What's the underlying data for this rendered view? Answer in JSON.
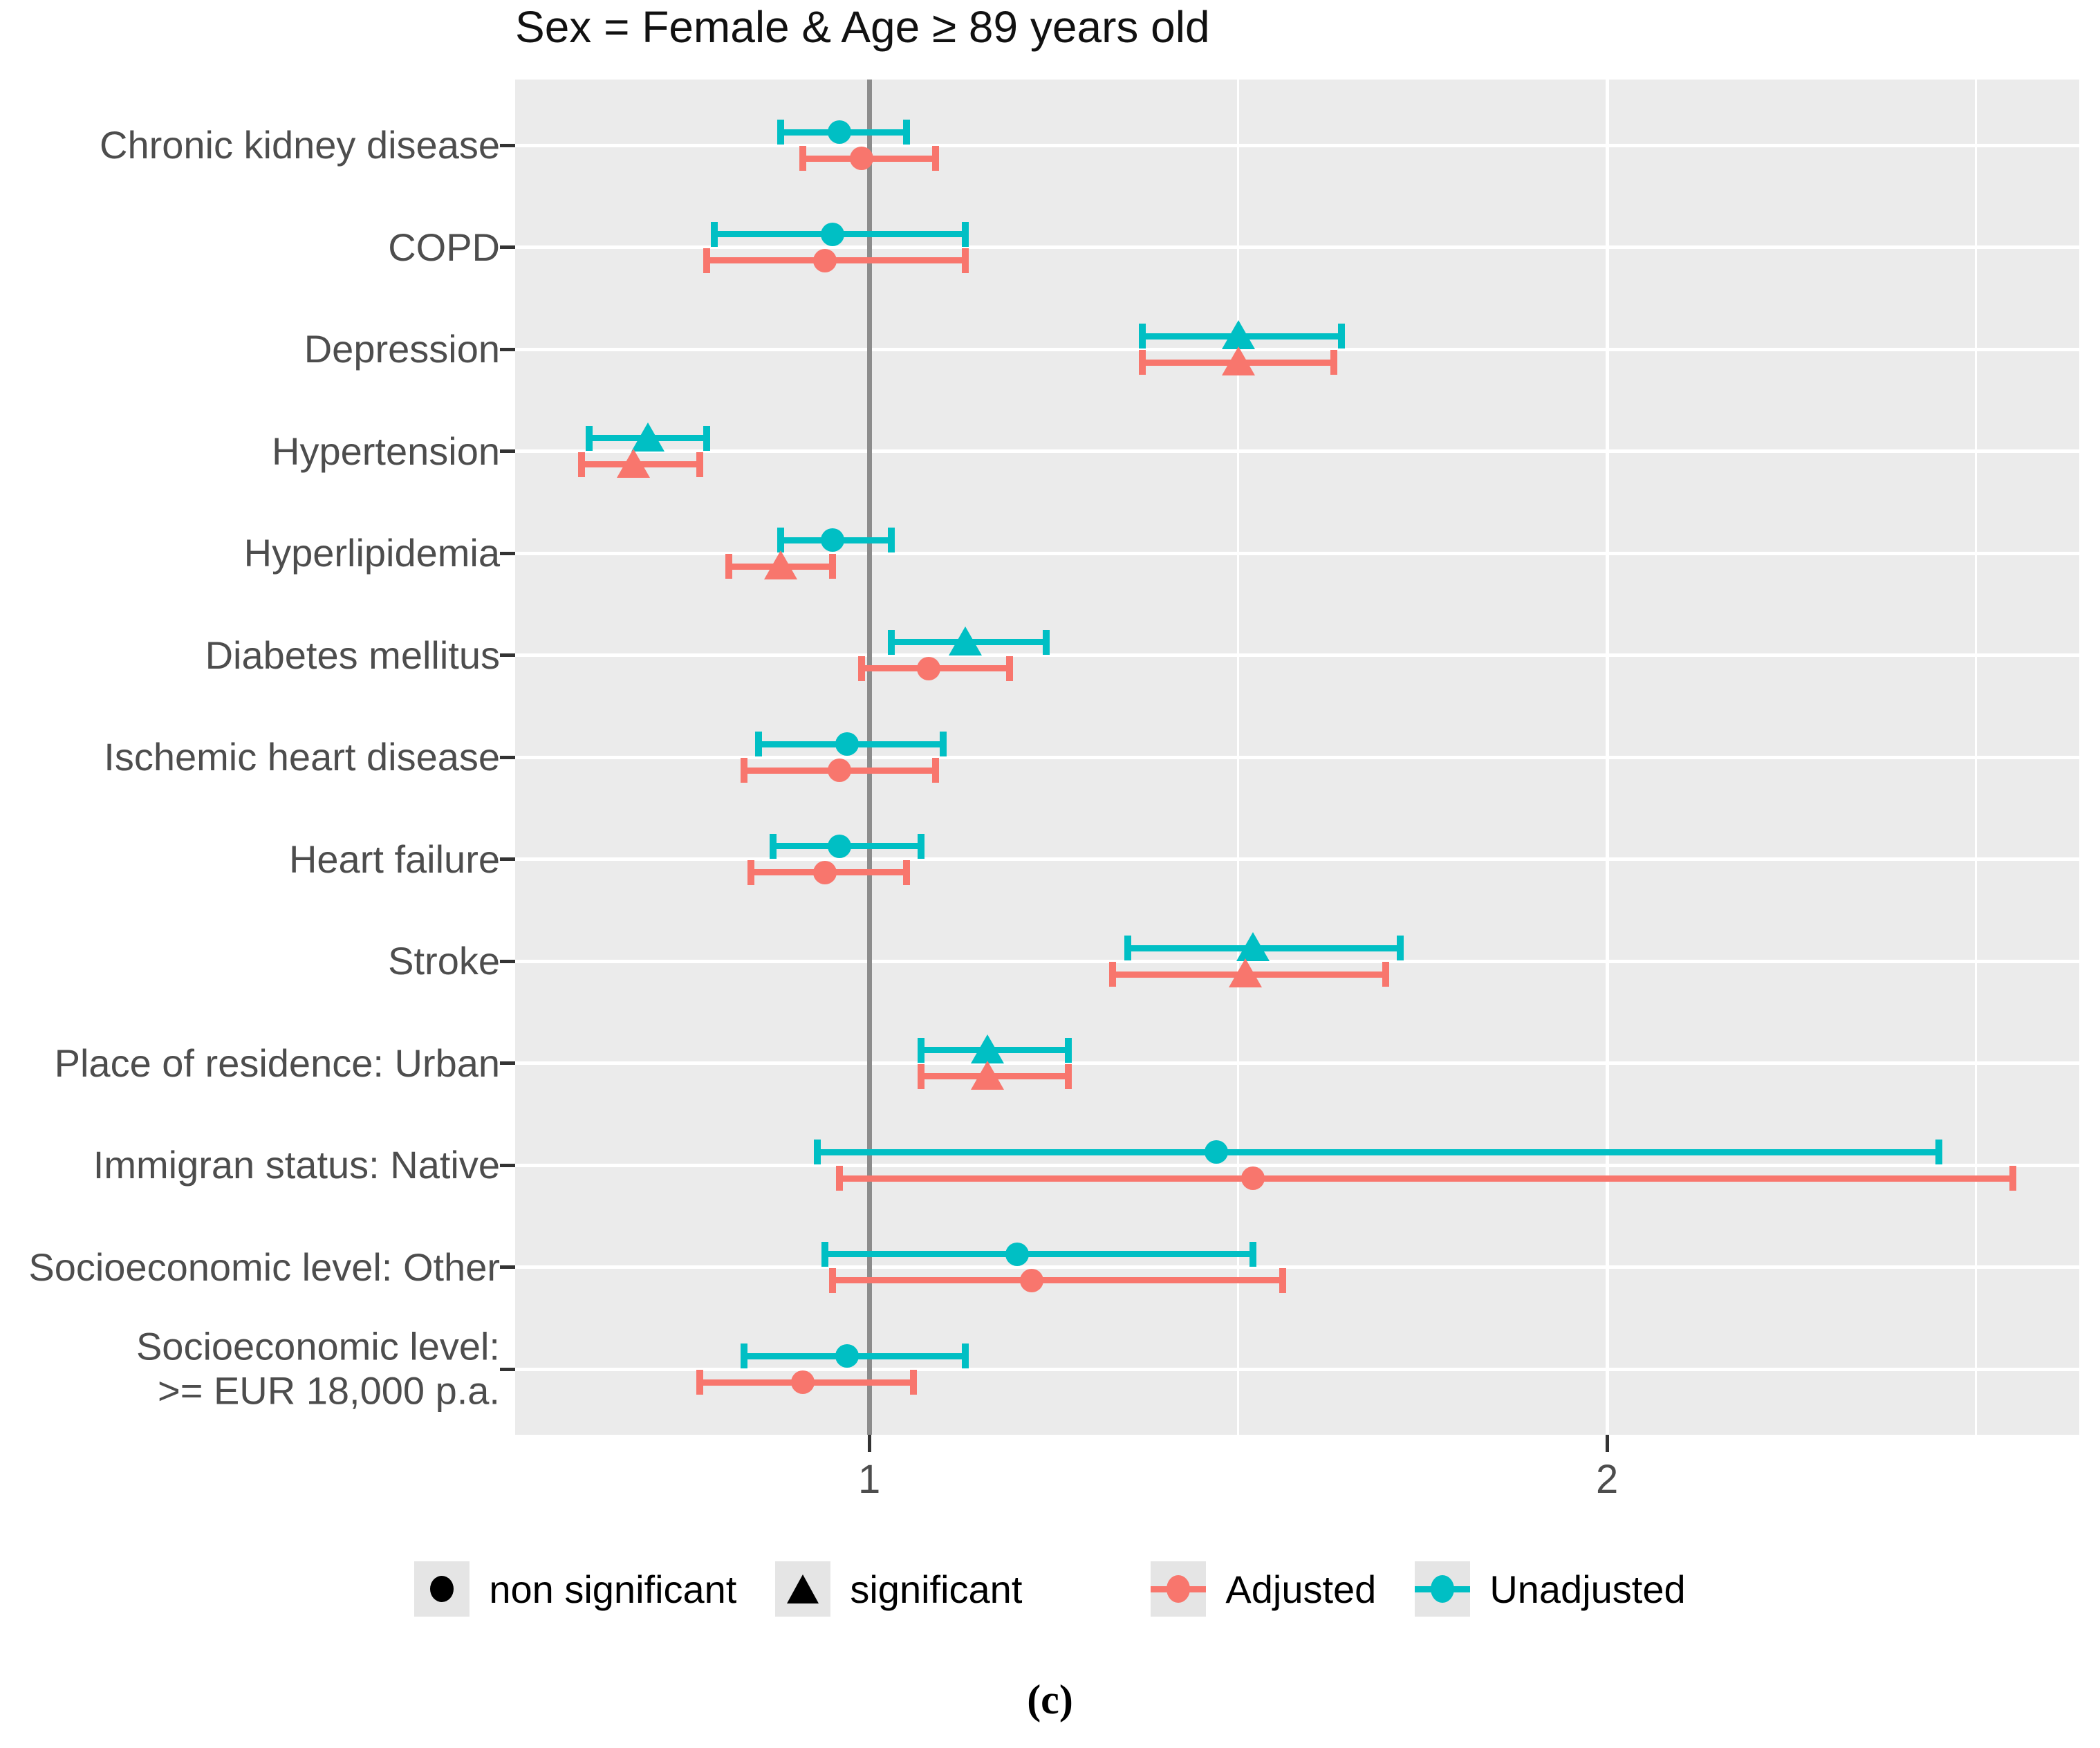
{
  "colors": {
    "adjusted": "#F8766D",
    "unadjusted": "#00BFC4",
    "panel_background": "#EBEBEB",
    "gridline": "#FFFFFF",
    "reference_line": "#8C8C8C",
    "axis_text": "#4D4D4D",
    "significant_marker_legend": "#000000"
  },
  "chart_data": {
    "type": "scatter",
    "subtype": "forest-pointrange",
    "title": "Sex = Female & Age ≥ 89 years old",
    "caption": "(c)",
    "x_axis": {
      "range": [
        0.52,
        2.64
      ],
      "ticks": [
        1,
        2
      ],
      "tick_labels": [
        "1",
        "2"
      ],
      "minor_gridlines": [
        1.5,
        2.5
      ],
      "reference_line": 1
    },
    "categories": [
      "Chronic kidney disease",
      "COPD",
      "Depression",
      "Hypertension",
      "Hyperlipidemia",
      "Diabetes mellitus",
      "Ischemic heart disease",
      "Heart failure",
      "Stroke",
      "Place of residence: Urban",
      "Immigran status: Native",
      "Socioeconomic level: Other",
      "Socioeconomic level:\n>= EUR 18,000 p.a."
    ],
    "series": [
      {
        "name": "Unadjusted",
        "color": "#00BFC4",
        "points": [
          {
            "estimate": 0.96,
            "lower": 0.88,
            "upper": 1.05,
            "significant": false
          },
          {
            "estimate": 0.95,
            "lower": 0.79,
            "upper": 1.13,
            "significant": false
          },
          {
            "estimate": 1.5,
            "lower": 1.37,
            "upper": 1.64,
            "significant": true
          },
          {
            "estimate": 0.7,
            "lower": 0.62,
            "upper": 0.78,
            "significant": true
          },
          {
            "estimate": 0.95,
            "lower": 0.88,
            "upper": 1.03,
            "significant": false
          },
          {
            "estimate": 1.13,
            "lower": 1.03,
            "upper": 1.24,
            "significant": true
          },
          {
            "estimate": 0.97,
            "lower": 0.85,
            "upper": 1.1,
            "significant": false
          },
          {
            "estimate": 0.96,
            "lower": 0.87,
            "upper": 1.07,
            "significant": false
          },
          {
            "estimate": 1.52,
            "lower": 1.35,
            "upper": 1.72,
            "significant": true
          },
          {
            "estimate": 1.16,
            "lower": 1.07,
            "upper": 1.27,
            "significant": true
          },
          {
            "estimate": 1.47,
            "lower": 0.93,
            "upper": 2.45,
            "significant": false
          },
          {
            "estimate": 1.2,
            "lower": 0.94,
            "upper": 1.52,
            "significant": false
          },
          {
            "estimate": 0.97,
            "lower": 0.83,
            "upper": 1.13,
            "significant": false
          }
        ]
      },
      {
        "name": "Adjusted",
        "color": "#F8766D",
        "points": [
          {
            "estimate": 0.99,
            "lower": 0.91,
            "upper": 1.09,
            "significant": false
          },
          {
            "estimate": 0.94,
            "lower": 0.78,
            "upper": 1.13,
            "significant": false
          },
          {
            "estimate": 1.5,
            "lower": 1.37,
            "upper": 1.63,
            "significant": true
          },
          {
            "estimate": 0.68,
            "lower": 0.61,
            "upper": 0.77,
            "significant": true
          },
          {
            "estimate": 0.88,
            "lower": 0.81,
            "upper": 0.95,
            "significant": true
          },
          {
            "estimate": 1.08,
            "lower": 0.99,
            "upper": 1.19,
            "significant": false
          },
          {
            "estimate": 0.96,
            "lower": 0.83,
            "upper": 1.09,
            "significant": false
          },
          {
            "estimate": 0.94,
            "lower": 0.84,
            "upper": 1.05,
            "significant": false
          },
          {
            "estimate": 1.51,
            "lower": 1.33,
            "upper": 1.7,
            "significant": true
          },
          {
            "estimate": 1.16,
            "lower": 1.07,
            "upper": 1.27,
            "significant": true
          },
          {
            "estimate": 1.52,
            "lower": 0.96,
            "upper": 2.55,
            "significant": false
          },
          {
            "estimate": 1.22,
            "lower": 0.95,
            "upper": 1.56,
            "significant": false
          },
          {
            "estimate": 0.91,
            "lower": 0.77,
            "upper": 1.06,
            "significant": false
          }
        ]
      }
    ],
    "legend": {
      "position": "bottom",
      "items": [
        {
          "label": "non significant",
          "kind": "circle",
          "color": "#000000"
        },
        {
          "label": "significant",
          "kind": "triangle",
          "color": "#000000"
        },
        {
          "label": "Adjusted",
          "kind": "pointrange",
          "color": "#F8766D"
        },
        {
          "label": "Unadjusted",
          "kind": "pointrange",
          "color": "#00BFC4"
        }
      ]
    },
    "grid": true
  }
}
